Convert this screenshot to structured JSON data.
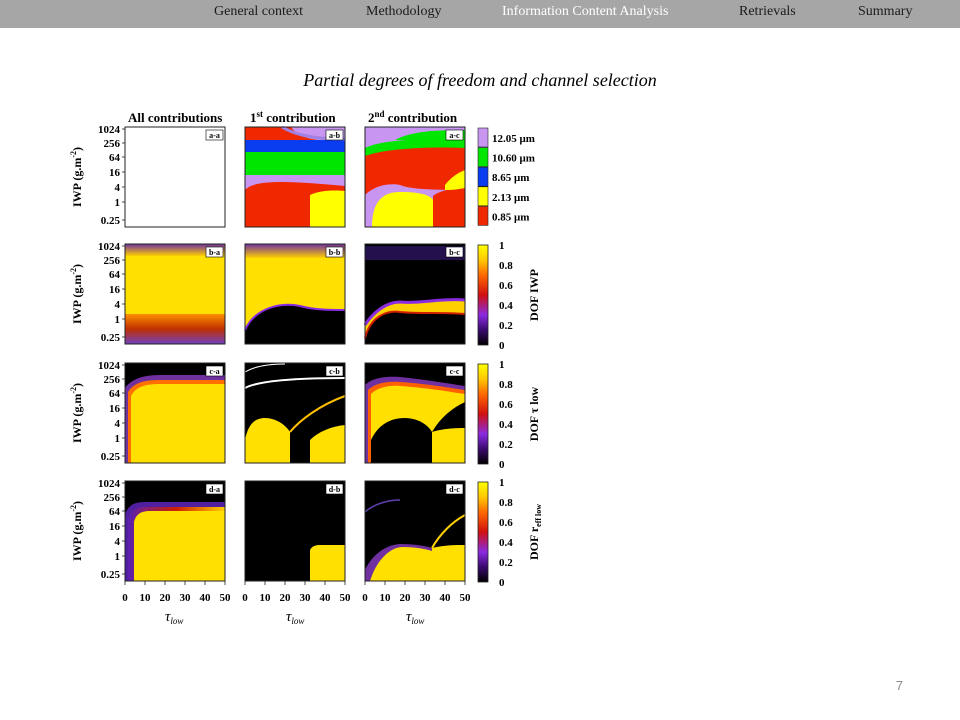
{
  "nav": {
    "items": [
      {
        "label": "General context",
        "active": false
      },
      {
        "label": "Methodology",
        "active": false
      },
      {
        "label": "Information Content Analysis",
        "active": true
      },
      {
        "label": "Retrievals",
        "active": false
      },
      {
        "label": "Summary",
        "active": false
      }
    ],
    "bar_color": "#a6a6a6",
    "active_color": "#ffffff"
  },
  "slide": {
    "title": "Partial degrees of freedom and channel selection",
    "page_number": "7"
  },
  "figure": {
    "column_titles": [
      {
        "text": "All contributions",
        "sup": ""
      },
      {
        "text": "1",
        "sup": "st",
        "suffix": " contribution"
      },
      {
        "text": "2",
        "sup": "nd",
        "suffix": " contribution"
      }
    ],
    "panel_labels": [
      [
        "a-a",
        "a-b",
        "a-c"
      ],
      [
        "b-a",
        "b-b",
        "b-c"
      ],
      [
        "c-a",
        "c-b",
        "c-c"
      ],
      [
        "d-a",
        "d-b",
        "d-c"
      ]
    ],
    "y_axis_label": "IWP (g.m",
    "y_axis_label_sup": "-2",
    "y_axis_label_end": ")",
    "y_ticks": [
      "1024",
      "256",
      "64",
      "16",
      "4",
      "1",
      "0.25"
    ],
    "x_ticks": [
      "0",
      "10",
      "20",
      "30",
      "40",
      "50"
    ],
    "x_axis_label": "τ",
    "x_axis_label_sub": "low",
    "channel_legend": [
      {
        "label": "12.05 μm",
        "color": "#c896f0"
      },
      {
        "label": "10.60 μm",
        "color": "#00e600"
      },
      {
        "label": "8.65 μm",
        "color": "#0a3cf0"
      },
      {
        "label": "2.13 μm",
        "color": "#ffff00"
      },
      {
        "label": "0.85 μm",
        "color": "#f02800"
      }
    ],
    "colorbar_ticks": [
      "1",
      "0.8",
      "0.6",
      "0.4",
      "0.2",
      "0"
    ],
    "colorbar_labels": [
      {
        "text": "DOF IWP",
        "sub": ""
      },
      {
        "text": "DOF τ low",
        "sub": ""
      },
      {
        "text": "DOF r",
        "sub": "eff low"
      }
    ]
  }
}
